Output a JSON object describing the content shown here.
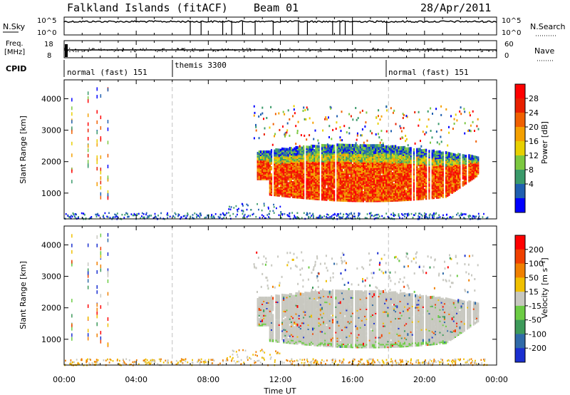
{
  "header": {
    "station": "Falkland Islands (fitACF)",
    "beam": "Beam 01",
    "date": "28/Apr/2011"
  },
  "noise_panel": {
    "left_label": "N.Sky",
    "left_ticks": [
      "10^5",
      "10^0"
    ],
    "right_ticks": [
      "10^5",
      "10^0"
    ],
    "right_label": "N.Search"
  },
  "freq_panel": {
    "left_label_1": "Freq.",
    "left_label_2": "[MHz]",
    "left_ticks": [
      "18",
      "8"
    ],
    "right_ticks": [
      "60",
      "0"
    ],
    "right_label": "Nave"
  },
  "cpid": {
    "label": "CPID",
    "modes": [
      {
        "text": "normal (fast) 151",
        "start_hour": 0
      },
      {
        "text": "themis 3300",
        "start_hour": 6
      },
      {
        "text": "normal (fast) 151",
        "start_hour": 18
      }
    ]
  },
  "x_axis": {
    "label": "Time UT",
    "ticks": [
      "00:00",
      "04:00",
      "08:00",
      "12:00",
      "16:00",
      "20:00",
      "00:00"
    ],
    "range_hours": [
      0,
      24
    ]
  },
  "chart_data": [
    {
      "type": "heatmap",
      "name": "power",
      "ylabel": "Slant Range [km]",
      "ylim": [
        180,
        4600
      ],
      "yticks": [
        "1000",
        "2000",
        "3000",
        "4000"
      ],
      "colorbar_label": "Power [dB]",
      "colorbar_ticks": [
        "28",
        "24",
        "20",
        "16",
        "12",
        "8",
        "4"
      ],
      "colorbar_colors": [
        "#0000ff",
        "#1f5fb0",
        "#3a9a6a",
        "#7cc840",
        "#e8d000",
        "#f4a000",
        "#f06000",
        "#e82000",
        "#ff0000"
      ],
      "echo_region": {
        "start_hour": 10.7,
        "end_hour": 23.0,
        "range_low_km": 800,
        "range_high_km": 2600
      }
    },
    {
      "type": "heatmap",
      "name": "velocity",
      "ylabel": "Slant Range [km]",
      "ylim": [
        180,
        4600
      ],
      "yticks": [
        "1000",
        "2000",
        "3000",
        "4000"
      ],
      "colorbar_label": "Velocity [m s⁻¹]",
      "colorbar_ticks": [
        "200",
        "100",
        "50",
        "15",
        "-15",
        "-50",
        "-100",
        "-200"
      ],
      "colorbar_colors": [
        "#1a2fd0",
        "#2f6aa8",
        "#3d9a5a",
        "#6ccc44",
        "#c8c8c0",
        "#f0c000",
        "#f08000",
        "#f04000",
        "#ff0000"
      ],
      "echo_region": {
        "start_hour": 10.7,
        "end_hour": 23.0,
        "range_low_km": 800,
        "range_high_km": 2600
      }
    }
  ],
  "colors": {
    "dashed_line": "#c0c0c0",
    "ground_scatter": "#c8c8c0"
  }
}
